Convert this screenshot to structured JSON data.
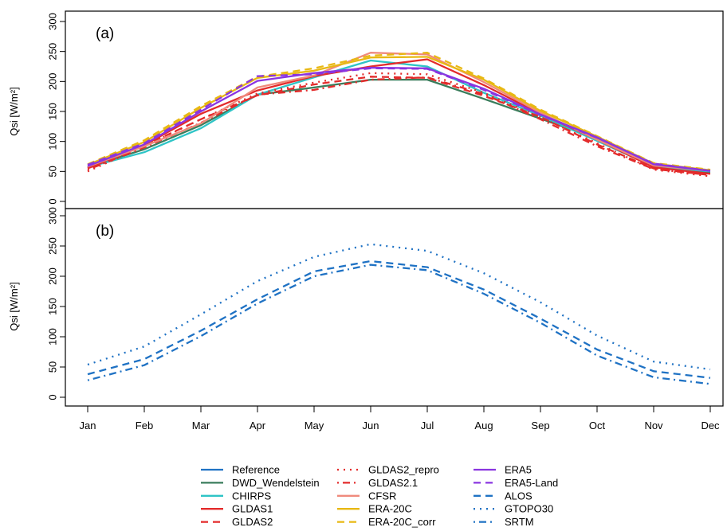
{
  "chart_data": {
    "type": "line",
    "categories": [
      "Jan",
      "Feb",
      "Mar",
      "Apr",
      "May",
      "Jun",
      "Jul",
      "Aug",
      "Sep",
      "Oct",
      "Nov",
      "Dec"
    ],
    "panels": [
      {
        "label": "(a)",
        "ylabel": "Qsi [W/m²]",
        "ylim": [
          0,
          300
        ],
        "yticks": [
          0,
          50,
          100,
          150,
          200,
          250,
          300
        ],
        "series": [
          {
            "name": "DWD_Wendelstein",
            "color": "#3a7d5c",
            "dash": "solid",
            "values": [
              57,
              87,
              127,
              178,
              190,
              203,
              203,
              171,
              138,
              105,
              60,
              48
            ]
          },
          {
            "name": "CHIRPS",
            "color": "#2ec4c6",
            "dash": "solid",
            "values": [
              57,
              82,
              122,
              178,
              207,
              235,
              225,
              181,
              143,
              101,
              58,
              50
            ]
          },
          {
            "name": "GLDAS1",
            "color": "#e32b2b",
            "dash": "solid",
            "values": [
              56,
              94,
              146,
              185,
              209,
              225,
              237,
              194,
              146,
              103,
              57,
              46
            ]
          },
          {
            "name": "GLDAS2",
            "color": "#e32b2b",
            "dash": "dash",
            "values": [
              55,
              93,
              137,
              177,
              195,
              208,
              206,
              176,
              141,
              95,
              55,
              44
            ]
          },
          {
            "name": "GLDAS2_repro",
            "color": "#e32b2b",
            "dash": "dot",
            "values": [
              50,
              92,
              137,
              180,
              198,
              214,
              212,
              181,
              140,
              97,
              53,
              42
            ]
          },
          {
            "name": "GLDAS2.1",
            "color": "#e32b2b",
            "dash": "dotdash",
            "values": [
              53,
              90,
              131,
              178,
              186,
              203,
              207,
              179,
              137,
              92,
              54,
              44
            ]
          },
          {
            "name": "CFSR",
            "color": "#ef8a7c",
            "dash": "solid",
            "values": [
              58,
              92,
              130,
              190,
              210,
              248,
              245,
              199,
              148,
              103,
              60,
              51
            ]
          },
          {
            "name": "ERA-20C",
            "color": "#e8b813",
            "dash": "solid",
            "values": [
              61,
              99,
              156,
              206,
              218,
              240,
              241,
              203,
              151,
              108,
              63,
              52
            ]
          },
          {
            "name": "ERA-20C_corr",
            "color": "#e8b813",
            "dash": "dash",
            "values": [
              62,
              102,
              159,
              208,
              222,
              243,
              248,
              205,
              153,
              109,
              64,
              53
            ]
          },
          {
            "name": "ERA5",
            "color": "#8a35e0",
            "dash": "solid",
            "values": [
              59,
              95,
              150,
              201,
              214,
              223,
              222,
              188,
              145,
              107,
              62,
              51
            ]
          },
          {
            "name": "ERA5-Land",
            "color": "#8a35e0",
            "dash": "dash",
            "values": [
              61,
              97,
              153,
              209,
              212,
              222,
              221,
              186,
              144,
              106,
              63,
              51
            ]
          }
        ]
      },
      {
        "label": "(b)",
        "ylabel": "Qsi [W/m²]",
        "ylim": [
          0,
          300
        ],
        "yticks": [
          0,
          50,
          100,
          150,
          200,
          250,
          300
        ],
        "series": [
          {
            "name": "ALOS",
            "color": "#1f72c4",
            "dash": "dash",
            "values": [
              38,
              63,
              110,
              162,
              208,
              225,
              215,
              178,
              130,
              79,
              43,
              32
            ]
          },
          {
            "name": "GTOPO30",
            "color": "#1f72c4",
            "dash": "dot",
            "values": [
              54,
              84,
              137,
              192,
              232,
              253,
              242,
              205,
              157,
              102,
              59,
              46
            ]
          },
          {
            "name": "SRTM",
            "color": "#1f72c4",
            "dash": "dotdash",
            "values": [
              28,
              53,
              101,
              155,
              200,
              219,
              210,
              171,
              123,
              69,
              33,
              22
            ]
          }
        ]
      }
    ],
    "legend": {
      "placement": "bottom",
      "entries": [
        {
          "name": "Reference",
          "color": "#1f72c4",
          "dash": "solid"
        },
        {
          "name": "DWD_Wendelstein",
          "color": "#3a7d5c",
          "dash": "solid"
        },
        {
          "name": "CHIRPS",
          "color": "#2ec4c6",
          "dash": "solid"
        },
        {
          "name": "GLDAS1",
          "color": "#e32b2b",
          "dash": "solid"
        },
        {
          "name": "GLDAS2",
          "color": "#e32b2b",
          "dash": "dash"
        },
        {
          "name": "GLDAS2_repro",
          "color": "#e32b2b",
          "dash": "dot"
        },
        {
          "name": "GLDAS2.1",
          "color": "#e32b2b",
          "dash": "dotdash"
        },
        {
          "name": "CFSR",
          "color": "#ef8a7c",
          "dash": "solid"
        },
        {
          "name": "ERA-20C",
          "color": "#e8b813",
          "dash": "solid"
        },
        {
          "name": "ERA-20C_corr",
          "color": "#e8b813",
          "dash": "dash"
        },
        {
          "name": "ERA5",
          "color": "#8a35e0",
          "dash": "solid"
        },
        {
          "name": "ERA5-Land",
          "color": "#8a35e0",
          "dash": "dash"
        },
        {
          "name": "ALOS",
          "color": "#1f72c4",
          "dash": "dash"
        },
        {
          "name": "GTOPO30",
          "color": "#1f72c4",
          "dash": "dot"
        },
        {
          "name": "SRTM",
          "color": "#1f72c4",
          "dash": "dotdash"
        }
      ]
    }
  }
}
